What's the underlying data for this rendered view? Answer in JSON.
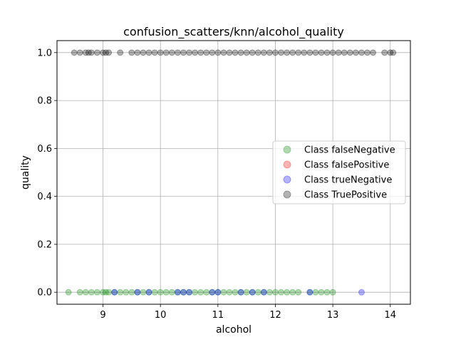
{
  "chart_data": {
    "type": "scatter",
    "title": "confusion_scatters/knn/alcohol_quality",
    "xlabel": "alcohol",
    "ylabel": "quality",
    "xlim": [
      8.2,
      14.35
    ],
    "ylim": [
      -0.05,
      1.05
    ],
    "xticks": [
      9,
      10,
      11,
      12,
      13,
      14
    ],
    "yticks": [
      0.0,
      0.2,
      0.4,
      0.6,
      0.8,
      1.0
    ],
    "xtick_labels": [
      "9",
      "10",
      "11",
      "12",
      "13",
      "14"
    ],
    "ytick_labels": [
      "0.0",
      "0.2",
      "0.4",
      "0.6",
      "0.8",
      "1.0"
    ],
    "grid": true,
    "legend_position": "right",
    "series": [
      {
        "name": "Class falseNegative",
        "color": "#008000",
        "alpha": 0.3,
        "points": [
          [
            8.4,
            0
          ],
          [
            8.6,
            0
          ],
          [
            8.7,
            0
          ],
          [
            8.8,
            0
          ],
          [
            8.9,
            0
          ],
          [
            9.0,
            0
          ],
          [
            9.05,
            0
          ],
          [
            9.1,
            0
          ],
          [
            9.2,
            0
          ],
          [
            9.3,
            0
          ],
          [
            9.4,
            0
          ],
          [
            9.5,
            0
          ],
          [
            9.6,
            0
          ],
          [
            9.7,
            0
          ],
          [
            9.8,
            0
          ],
          [
            9.9,
            0
          ],
          [
            10.0,
            0
          ],
          [
            10.1,
            0
          ],
          [
            10.2,
            0
          ],
          [
            10.3,
            0
          ],
          [
            10.4,
            0
          ],
          [
            10.5,
            0
          ],
          [
            10.6,
            0
          ],
          [
            10.7,
            0
          ],
          [
            10.8,
            0
          ],
          [
            10.9,
            0
          ],
          [
            11.0,
            0
          ],
          [
            11.1,
            0
          ],
          [
            11.2,
            0
          ],
          [
            11.3,
            0
          ],
          [
            11.4,
            0
          ],
          [
            11.5,
            0
          ],
          [
            11.6,
            0
          ],
          [
            11.7,
            0
          ],
          [
            11.8,
            0
          ],
          [
            11.9,
            0
          ],
          [
            12.0,
            0
          ],
          [
            12.1,
            0
          ],
          [
            12.2,
            0
          ],
          [
            12.3,
            0
          ],
          [
            12.4,
            0
          ],
          [
            12.6,
            0
          ],
          [
            12.7,
            0
          ],
          [
            12.8,
            0
          ],
          [
            12.9,
            0
          ],
          [
            13.0,
            0
          ]
        ]
      },
      {
        "name": "Class falsePositive",
        "color": "#ff0000",
        "alpha": 0.3,
        "points": []
      },
      {
        "name": "Class trueNegative",
        "color": "#0000ff",
        "alpha": 0.3,
        "points": [
          [
            9.2,
            0
          ],
          [
            9.6,
            0
          ],
          [
            9.8,
            0
          ],
          [
            10.3,
            0
          ],
          [
            10.4,
            0
          ],
          [
            10.5,
            0
          ],
          [
            10.9,
            0
          ],
          [
            11.0,
            0
          ],
          [
            11.4,
            0
          ],
          [
            11.6,
            0
          ],
          [
            11.8,
            0
          ],
          [
            12.6,
            0
          ],
          [
            13.5,
            0
          ]
        ]
      },
      {
        "name": "Class TruePositive",
        "color": "#000000",
        "alpha": 0.3,
        "points": [
          [
            8.5,
            1
          ],
          [
            8.6,
            1
          ],
          [
            8.7,
            1
          ],
          [
            8.75,
            1
          ],
          [
            8.8,
            1
          ],
          [
            8.9,
            1
          ],
          [
            9.0,
            1
          ],
          [
            9.05,
            1
          ],
          [
            9.1,
            1
          ],
          [
            9.3,
            1
          ],
          [
            9.5,
            1
          ],
          [
            9.6,
            1
          ],
          [
            9.7,
            1
          ],
          [
            9.8,
            1
          ],
          [
            9.9,
            1
          ],
          [
            10.0,
            1
          ],
          [
            10.1,
            1
          ],
          [
            10.2,
            1
          ],
          [
            10.3,
            1
          ],
          [
            10.4,
            1
          ],
          [
            10.5,
            1
          ],
          [
            10.6,
            1
          ],
          [
            10.7,
            1
          ],
          [
            10.8,
            1
          ],
          [
            10.9,
            1
          ],
          [
            11.0,
            1
          ],
          [
            11.1,
            1
          ],
          [
            11.2,
            1
          ],
          [
            11.3,
            1
          ],
          [
            11.4,
            1
          ],
          [
            11.5,
            1
          ],
          [
            11.6,
            1
          ],
          [
            11.7,
            1
          ],
          [
            11.8,
            1
          ],
          [
            11.9,
            1
          ],
          [
            12.0,
            1
          ],
          [
            12.1,
            1
          ],
          [
            12.2,
            1
          ],
          [
            12.3,
            1
          ],
          [
            12.4,
            1
          ],
          [
            12.5,
            1
          ],
          [
            12.6,
            1
          ],
          [
            12.7,
            1
          ],
          [
            12.8,
            1
          ],
          [
            12.9,
            1
          ],
          [
            13.0,
            1
          ],
          [
            13.1,
            1
          ],
          [
            13.2,
            1
          ],
          [
            13.3,
            1
          ],
          [
            13.4,
            1
          ],
          [
            13.5,
            1
          ],
          [
            13.6,
            1
          ],
          [
            13.7,
            1
          ],
          [
            13.9,
            1
          ],
          [
            14.0,
            1
          ],
          [
            14.05,
            1
          ]
        ]
      }
    ]
  }
}
